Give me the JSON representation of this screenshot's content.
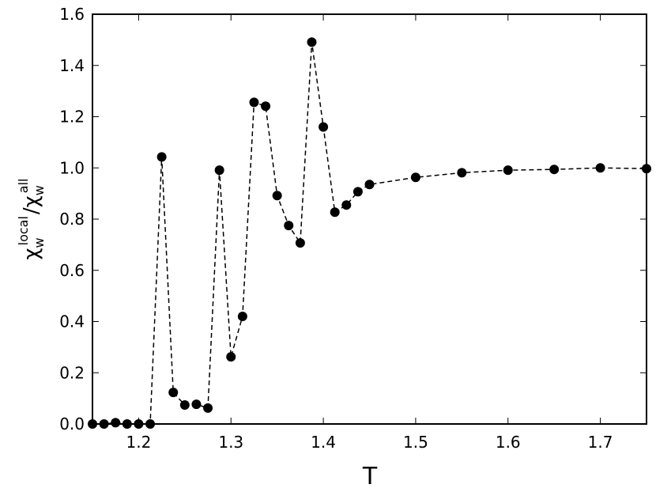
{
  "chart_data": {
    "type": "line",
    "x_label": "T",
    "y_label": {
      "numerator": {
        "base": "χ",
        "sub": "w",
        "sup": "local"
      },
      "separator": "/",
      "denominator": {
        "base": "χ",
        "sub": "w",
        "sup": "all"
      }
    },
    "x": [
      1.15,
      1.1625,
      1.175,
      1.1875,
      1.2,
      1.2125,
      1.225,
      1.2375,
      1.25,
      1.2625,
      1.275,
      1.2875,
      1.3,
      1.3125,
      1.325,
      1.3375,
      1.35,
      1.3625,
      1.375,
      1.3875,
      1.4,
      1.4125,
      1.425,
      1.4375,
      1.45,
      1.5,
      1.55,
      1.6,
      1.65,
      1.7,
      1.75
    ],
    "values": [
      0,
      0,
      0.005,
      0,
      0,
      0,
      1.043,
      0.123,
      0.074,
      0.077,
      0.062,
      0.991,
      0.262,
      0.42,
      1.256,
      1.241,
      0.892,
      0.775,
      0.707,
      1.491,
      1.16,
      0.827,
      0.855,
      0.907,
      0.935,
      0.963,
      0.981,
      0.991,
      0.994,
      1.0,
      0.997
    ],
    "color": "#000000",
    "line_style": "dashed",
    "markers": true,
    "xlim": [
      1.15,
      1.75
    ],
    "xticks": [
      1.2,
      1.3,
      1.4,
      1.5,
      1.6,
      1.7
    ],
    "ylim": [
      0,
      1.6
    ],
    "yticks": [
      {
        "value": 0,
        "label": "0.0"
      },
      0.2,
      0.4,
      0.6,
      0.8,
      {
        "value": 1,
        "label": "1.0"
      },
      1.2,
      1.4,
      1.6
    ],
    "grid": false
  }
}
